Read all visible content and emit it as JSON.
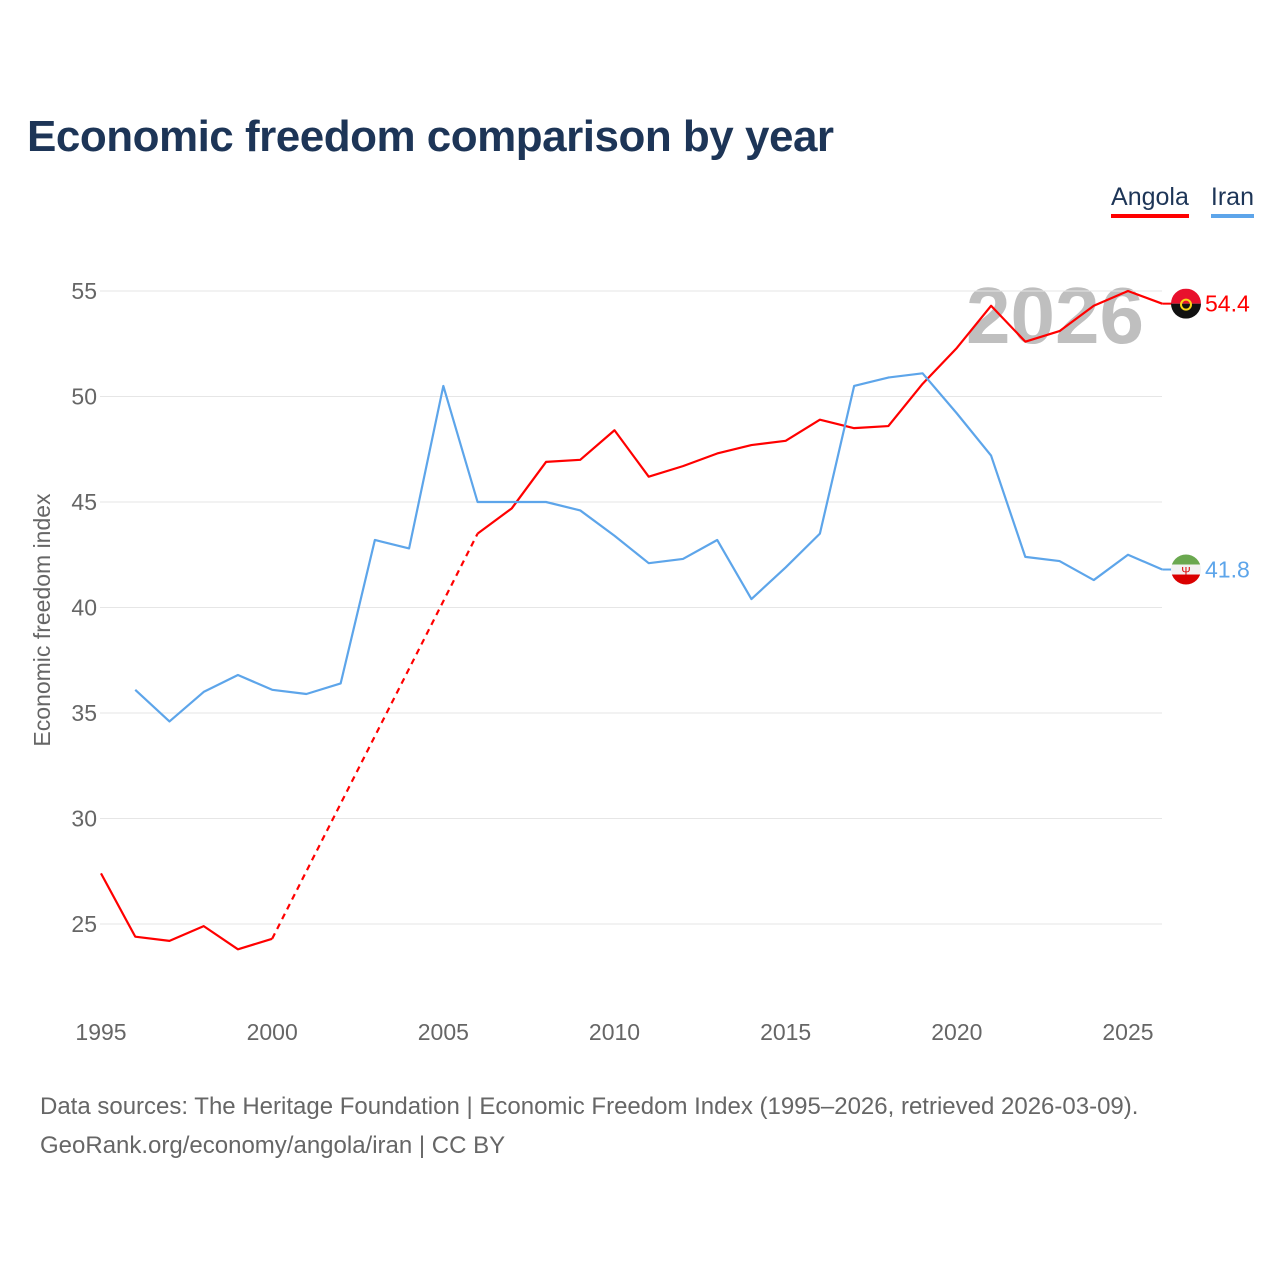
{
  "chart_data": {
    "type": "line",
    "title": "Economic freedom comparison by year",
    "ylabel": "Economic freedom index",
    "xlabel": "",
    "ylim": [
      21,
      57
    ],
    "xlim": [
      1995,
      2026
    ],
    "yticks": [
      25,
      30,
      35,
      40,
      45,
      50,
      55
    ],
    "xticks": [
      1995,
      2000,
      2005,
      2010,
      2015,
      2020,
      2025
    ],
    "grid": true,
    "legend_position": "top-right",
    "year_watermark": "2026",
    "x": [
      1995,
      1996,
      1997,
      1998,
      1999,
      2000,
      2001,
      2002,
      2003,
      2004,
      2005,
      2006,
      2007,
      2008,
      2009,
      2010,
      2011,
      2012,
      2013,
      2014,
      2015,
      2016,
      2017,
      2018,
      2019,
      2020,
      2021,
      2022,
      2023,
      2024,
      2025,
      2026
    ],
    "series": [
      {
        "name": "Angola",
        "color": "#ff0000",
        "end_label": "54.4",
        "values": [
          27.4,
          24.4,
          24.2,
          24.9,
          23.8,
          24.3,
          null,
          null,
          null,
          null,
          null,
          43.5,
          44.7,
          46.9,
          47.0,
          48.4,
          46.2,
          46.7,
          47.3,
          47.7,
          47.9,
          48.9,
          48.5,
          48.6,
          50.6,
          52.3,
          54.3,
          52.6,
          53.1,
          54.3,
          55.0,
          54.4
        ]
      },
      {
        "name": "Iran",
        "color": "#5da5ea",
        "end_label": "41.8",
        "values": [
          null,
          36.1,
          34.6,
          36.0,
          36.8,
          36.1,
          35.9,
          36.4,
          43.2,
          42.8,
          50.5,
          45.0,
          45.0,
          45.0,
          44.6,
          43.4,
          42.1,
          42.3,
          43.2,
          40.4,
          41.9,
          43.5,
          50.5,
          50.9,
          51.1,
          49.2,
          47.2,
          42.4,
          42.2,
          41.3,
          42.5,
          41.8
        ]
      }
    ]
  },
  "footer": {
    "line1": "Data sources: The Heritage Foundation | Economic Freedom Index (1995–2026, retrieved 2026-03-09).",
    "line2": "GeoRank.org/economy/angola/iran | CC BY"
  }
}
